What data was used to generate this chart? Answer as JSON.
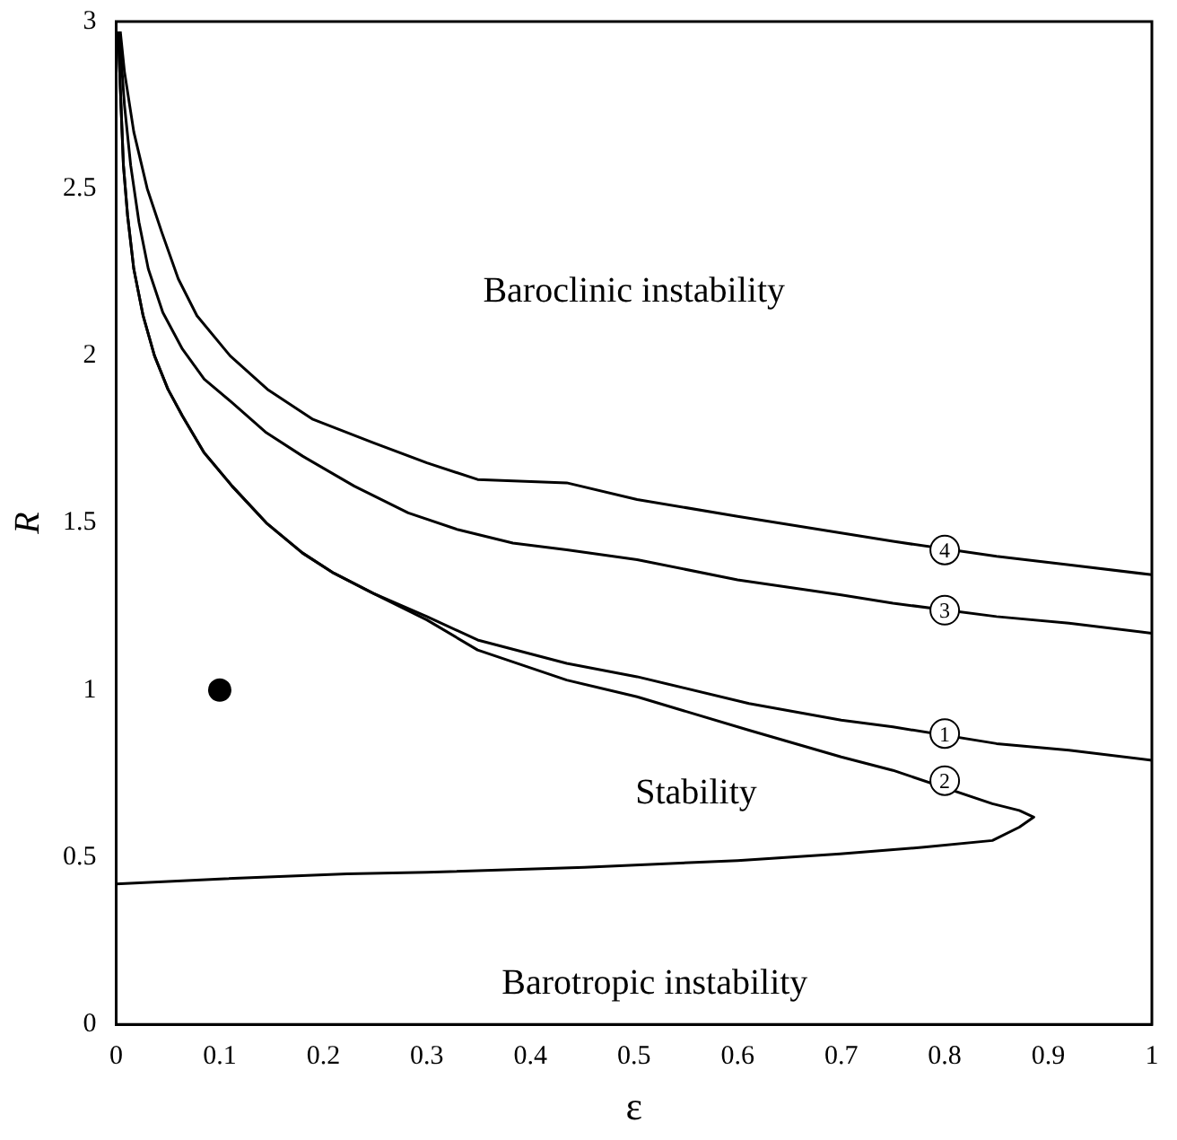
{
  "chart_data": {
    "type": "line",
    "xlabel": "ε",
    "ylabel": "R",
    "xlim": [
      0,
      1
    ],
    "xticks": [
      0,
      0.1,
      0.2,
      0.3,
      0.4,
      0.5,
      0.6,
      0.7,
      0.8,
      0.9,
      1
    ],
    "ylim": [
      0,
      3
    ],
    "yticks": [
      0,
      0.5,
      1,
      1.5,
      2,
      2.5,
      3
    ],
    "grid": false,
    "legend": false,
    "marker": "none",
    "line_style": "solid",
    "series": [
      {
        "color": "#000000",
        "x": [
          0.004,
          0.008,
          0.017,
          0.03,
          0.044,
          0.06,
          0.078,
          0.11,
          0.146,
          0.19,
          0.248,
          0.3,
          0.349,
          0.435,
          0.503,
          0.6,
          0.7,
          0.75,
          0.85,
          0.92,
          1
        ],
        "values": [
          2.97,
          2.85,
          2.67,
          2.5,
          2.37,
          2.23,
          2.12,
          2.0,
          1.9,
          1.81,
          1.74,
          1.68,
          1.63,
          1.62,
          1.57,
          1.52,
          1.47,
          1.445,
          1.4,
          1.375,
          1.345
        ]
      },
      {
        "color": "#000000",
        "x": [
          0.003,
          0.008,
          0.014,
          0.022,
          0.031,
          0.045,
          0.064,
          0.085,
          0.112,
          0.145,
          0.18,
          0.23,
          0.282,
          0.33,
          0.383,
          0.435,
          0.503,
          0.6,
          0.7,
          0.75,
          0.85,
          0.92,
          1
        ],
        "values": [
          2.97,
          2.75,
          2.57,
          2.4,
          2.26,
          2.13,
          2.02,
          1.93,
          1.86,
          1.77,
          1.7,
          1.61,
          1.53,
          1.48,
          1.44,
          1.42,
          1.39,
          1.33,
          1.285,
          1.26,
          1.22,
          1.2,
          1.17
        ]
      },
      {
        "color": "#000000",
        "x": [
          0.002,
          0.004,
          0.007,
          0.011,
          0.017,
          0.026,
          0.037,
          0.05,
          0.064,
          0.085,
          0.112,
          0.145,
          0.18,
          0.21,
          0.248,
          0.3,
          0.349,
          0.435,
          0.503,
          0.611,
          0.7,
          0.75,
          0.85,
          0.92,
          1
        ],
        "values": [
          2.97,
          2.8,
          2.57,
          2.42,
          2.26,
          2.12,
          2.0,
          1.9,
          1.82,
          1.71,
          1.61,
          1.5,
          1.41,
          1.35,
          1.29,
          1.22,
          1.15,
          1.08,
          1.04,
          0.96,
          0.91,
          0.89,
          0.84,
          0.82,
          0.79
        ]
      },
      {
        "color": "#000000",
        "x": [
          0.002,
          0.004,
          0.007,
          0.011,
          0.017,
          0.026,
          0.037,
          0.05,
          0.064,
          0.085,
          0.112,
          0.145,
          0.18,
          0.21,
          0.248,
          0.3,
          0.349,
          0.435,
          0.503,
          0.611,
          0.7,
          0.75,
          0.846,
          0.872,
          0.886,
          0.872,
          0.846,
          0.78,
          0.699,
          0.6,
          0.452,
          0.3,
          0.223,
          0.1,
          0
        ],
        "values": [
          2.97,
          2.8,
          2.57,
          2.42,
          2.26,
          2.12,
          2.0,
          1.9,
          1.82,
          1.71,
          1.61,
          1.5,
          1.41,
          1.35,
          1.29,
          1.21,
          1.12,
          1.03,
          0.98,
          0.88,
          0.8,
          0.76,
          0.66,
          0.64,
          0.62,
          0.59,
          0.55,
          0.53,
          0.51,
          0.49,
          0.47,
          0.455,
          0.45,
          0.435,
          0.42
        ]
      },
      {
        "type": "scatter",
        "marker": "circle",
        "color": "#000000",
        "x": [
          0.1
        ],
        "values": [
          1
        ]
      }
    ],
    "annotations": [
      "4",
      "3",
      "1",
      "2",
      "Baroclinic instability",
      "Stability",
      "Barotropic instability"
    ]
  }
}
